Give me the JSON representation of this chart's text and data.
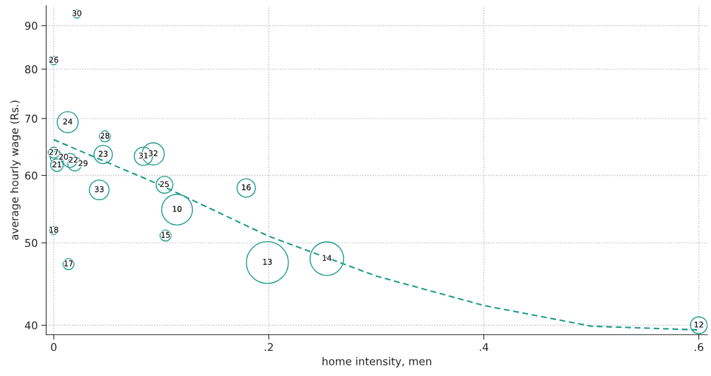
{
  "chart_data": {
    "type": "bubble",
    "xlabel": "home intensity, men",
    "ylabel": "average hourly wage (Rs.)",
    "log": "y",
    "grid": true,
    "xlim": [
      -0.007,
      0.608
    ],
    "ylim": [
      39,
      95
    ],
    "xticks": [
      {
        "value": 0,
        "label": "0"
      },
      {
        "value": 0.2,
        "label": ".2"
      },
      {
        "value": 0.4,
        "label": ".4"
      },
      {
        "value": 0.6,
        "label": ".6"
      }
    ],
    "yticks": [
      40,
      50,
      60,
      70,
      80,
      90
    ],
    "series": [
      {
        "type": "bubble",
        "color": "#1a9a8a",
        "x": [
          0.0215,
          0,
          0.013,
          0.0476,
          0,
          0.0026,
          0.003,
          0.015,
          0.0195,
          0.046,
          0.0834,
          0.0925,
          0.103,
          0.0423,
          0.179,
          0.1147,
          0,
          0.104,
          0.0137,
          0.1987,
          0.254,
          0.6
        ],
        "values": [
          92.9,
          81.9,
          69.3,
          66.7,
          63.8,
          63.0,
          61.7,
          62.5,
          61.9,
          63.5,
          63.2,
          63.6,
          58.5,
          57.7,
          58.0,
          54.7,
          51.7,
          51.0,
          47.2,
          47.4,
          47.9,
          40.0
        ],
        "sizes": [
          0.04,
          0.04,
          0.25,
          0.07,
          0.07,
          0.09,
          0.09,
          0.11,
          0.11,
          0.19,
          0.19,
          0.28,
          0.16,
          0.22,
          0.19,
          0.54,
          0.04,
          0.07,
          0.07,
          1,
          0.64,
          0.16
        ]
      },
      {
        "type": "line",
        "color": "#1a9a8a",
        "line_style": "dashed",
        "x": [
          0,
          0.1,
          0.2,
          0.3,
          0.4,
          0.5,
          0.6
        ],
        "values": [
          66.1,
          58.4,
          50.9,
          45.7,
          42.2,
          39.9,
          39.5
        ]
      }
    ],
    "annotations": [
      {
        "text": "30",
        "x": 0.0215,
        "y": 92.9
      },
      {
        "text": "26",
        "x": 0,
        "y": 81.9
      },
      {
        "text": "24",
        "x": 0.013,
        "y": 69.3
      },
      {
        "text": "28",
        "x": 0.0476,
        "y": 66.7
      },
      {
        "text": "27",
        "x": 0,
        "y": 63.8
      },
      {
        "text": "20",
        "x": 0.0026,
        "y": 63.0
      },
      {
        "text": "21",
        "x": 0.003,
        "y": 61.7
      },
      {
        "text": "22",
        "x": 0.015,
        "y": 62.5
      },
      {
        "text": "29",
        "x": 0.0195,
        "y": 61.9
      },
      {
        "text": "23",
        "x": 0.046,
        "y": 63.5
      },
      {
        "text": "31",
        "x": 0.0834,
        "y": 63.2
      },
      {
        "text": "32",
        "x": 0.0925,
        "y": 63.6
      },
      {
        "text": "25",
        "x": 0.103,
        "y": 58.5
      },
      {
        "text": "33",
        "x": 0.0423,
        "y": 57.7
      },
      {
        "text": "16",
        "x": 0.179,
        "y": 58.0
      },
      {
        "text": "10",
        "x": 0.1147,
        "y": 54.7
      },
      {
        "text": "18",
        "x": 0,
        "y": 51.7
      },
      {
        "text": "15",
        "x": 0.104,
        "y": 51.0
      },
      {
        "text": "17",
        "x": 0.0137,
        "y": 47.2
      },
      {
        "text": "13",
        "x": 0.1987,
        "y": 47.4
      },
      {
        "text": "14",
        "x": 0.254,
        "y": 47.9
      },
      {
        "text": "12",
        "x": 0.6,
        "y": 40.0
      }
    ]
  }
}
